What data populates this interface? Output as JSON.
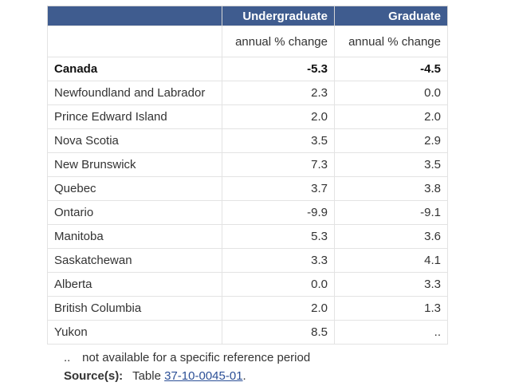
{
  "table": {
    "headers": {
      "geography": "",
      "undergraduate": "Undergraduate",
      "graduate": "Graduate"
    },
    "units": {
      "undergraduate": "annual % change",
      "graduate": "annual % change"
    },
    "rows": [
      {
        "geo": "Canada",
        "undergraduate": "-5.3",
        "graduate": "-4.5",
        "total": true
      },
      {
        "geo": "Newfoundland and Labrador",
        "undergraduate": "2.3",
        "graduate": "0.0"
      },
      {
        "geo": "Prince Edward Island",
        "undergraduate": "2.0",
        "graduate": "2.0"
      },
      {
        "geo": "Nova Scotia",
        "undergraduate": "3.5",
        "graduate": "2.9"
      },
      {
        "geo": "New Brunswick",
        "undergraduate": "7.3",
        "graduate": "3.5"
      },
      {
        "geo": "Quebec",
        "undergraduate": "3.7",
        "graduate": "3.8"
      },
      {
        "geo": "Ontario",
        "undergraduate": "-9.9",
        "graduate": "-9.1"
      },
      {
        "geo": "Manitoba",
        "undergraduate": "5.3",
        "graduate": "3.6"
      },
      {
        "geo": "Saskatchewan",
        "undergraduate": "3.3",
        "graduate": "4.1"
      },
      {
        "geo": "Alberta",
        "undergraduate": "0.0",
        "graduate": "3.3"
      },
      {
        "geo": "British Columbia",
        "undergraduate": "2.0",
        "graduate": "1.3"
      },
      {
        "geo": "Yukon",
        "undergraduate": "8.5",
        "graduate": ".."
      }
    ]
  },
  "footnote": {
    "symbol": "..",
    "text": "not available for a specific reference period"
  },
  "source": {
    "label": "Source(s):",
    "prefix": "Table",
    "link_text": "37-10-0045-01",
    "suffix": "."
  },
  "colors": {
    "header_background": "#3f5c8f",
    "header_text": "#ffffff",
    "link": "#2b4f96"
  }
}
